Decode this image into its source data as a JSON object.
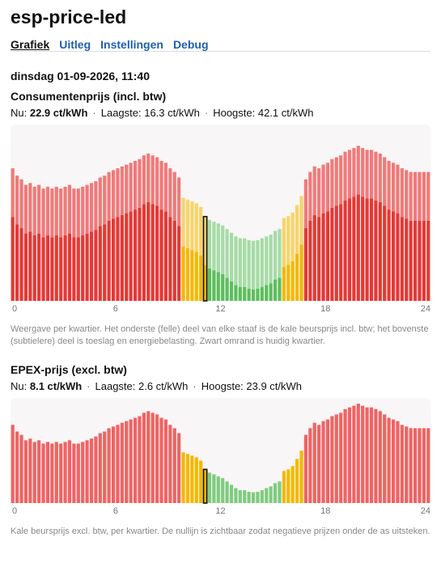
{
  "header": {
    "title": "esp-price-led"
  },
  "nav": [
    "Grafiek",
    "Uitleg",
    "Instellingen",
    "Debug"
  ],
  "date": "dinsdag 01-09-2026, 11:40",
  "separator": "·",
  "sections": [
    {
      "heading": "Consumentenprijs (incl. btw)",
      "stats": {
        "now_label": "Nu:",
        "now": "22.9 ct/kWh",
        "low": "Laagste: 16.3 ct/kWh",
        "high": "Hoogste: 42.1 ct/kWh"
      },
      "note": "Weergave per kwartier. Het onderste (felle) deel van elke staaf is de kale beursprijs incl. btw; het bovenste (subtielere) deel is toeslag en energiebelasting. Zwart omrand is huidig kwartier.",
      "chart_data": {
        "type": "stacked-bar",
        "xlim": [
          0,
          24
        ],
        "xticks": [
          0,
          6,
          12,
          18,
          24
        ],
        "ylim": [
          0,
          47
        ],
        "highlight": 44,
        "levels": [
          {
            "below": 22.5,
            "colors": [
              "#5cbf5c",
              "#a6dca6"
            ]
          },
          {
            "below": 30,
            "colors": [
              "#f5b800",
              "#f8d46a"
            ]
          },
          {
            "colors": [
              "#e53935",
              "#f07a7a"
            ]
          }
        ],
        "series": [
          {
            "values": [
              22.8,
              20.8,
              19.8,
              18.3,
              18.8,
              17.8,
              18.3,
              17.3,
              17.8,
              17.3,
              17.8,
              17.3,
              17.8,
              18.3,
              17.3,
              17.3,
              17.8,
              18.3,
              18.8,
              19.3,
              20.3,
              20.8,
              21.8,
              22.3,
              22.8,
              23.3,
              23.8,
              24.3,
              24.8,
              25.3,
              26.3,
              26.8,
              26.3,
              25.8,
              24.8,
              24.3,
              22.8,
              21.8,
              20.3,
              14.8,
              14.3,
              13.8,
              13.3,
              12.3,
              9.7,
              8.8,
              8.3,
              7.8,
              7.3,
              6.3,
              5.3,
              4.3,
              3.8,
              3.8,
              3.3,
              3.1,
              3.3,
              3.8,
              4.3,
              4.8,
              5.8,
              6.3,
              9.3,
              9.8,
              10.8,
              12.8,
              15.3,
              19.8,
              21.8,
              23.3,
              22.8,
              23.8,
              24.3,
              25.3,
              25.8,
              26.3,
              27.3,
              27.8,
              28.3,
              28.9,
              28.3,
              27.8,
              27.8,
              27.3,
              26.8,
              25.8,
              24.8,
              24.3,
              23.8,
              22.8,
              22.3,
              21.8,
              21.8,
              21.8,
              21.8,
              21.8
            ]
          },
          {
            "values": [
              13.2,
              13.2,
              13.2,
              13.2,
              13.2,
              13.2,
              13.2,
              13.2,
              13.2,
              13.2,
              13.2,
              13.2,
              13.2,
              13.2,
              13.2,
              13.2,
              13.2,
              13.2,
              13.2,
              13.2,
              13.2,
              13.2,
              13.2,
              13.2,
              13.2,
              13.2,
              13.2,
              13.2,
              13.2,
              13.2,
              13.2,
              13.2,
              13.2,
              13.2,
              13.2,
              13.2,
              13.2,
              13.2,
              13.2,
              13.2,
              13.2,
              13.2,
              13.2,
              13.2,
              13.2,
              13.2,
              13.2,
              13.2,
              13.2,
              13.2,
              13.2,
              13.2,
              13.2,
              13.2,
              13.2,
              13.2,
              13.2,
              13.2,
              13.2,
              13.2,
              13.2,
              13.2,
              13.2,
              13.2,
              13.2,
              13.2,
              13.2,
              13.2,
              13.2,
              13.2,
              13.2,
              13.2,
              13.2,
              13.2,
              13.2,
              13.2,
              13.2,
              13.2,
              13.2,
              13.2,
              13.2,
              13.2,
              13.2,
              13.2,
              13.2,
              13.2,
              13.2,
              13.2,
              13.2,
              13.2,
              13.2,
              13.2,
              13.2,
              13.2,
              13.2,
              13.2
            ]
          }
        ]
      }
    },
    {
      "heading": "EPEX-prijs (excl. btw)",
      "stats": {
        "now_label": "Nu:",
        "now": "8.1 ct/kWh",
        "low": "Laagste: 2.6 ct/kWh",
        "high": "Hoogste: 23.9 ct/kWh"
      },
      "note": "Kale beursprijs excl. btw, per kwartier. De nullijn is zichtbaar zodat negatieve prijzen onder de as uitsteken.",
      "chart_data": {
        "type": "stacked-bar",
        "xlim": [
          0,
          24
        ],
        "xticks": [
          0,
          6,
          12,
          18,
          24
        ],
        "ylim": [
          0,
          24.5
        ],
        "highlight": 44,
        "levels": [
          {
            "below": 7.7,
            "colors": [
              "#7fcc7f"
            ]
          },
          {
            "below": 13.9,
            "colors": [
              "#f5b800"
            ]
          },
          {
            "colors": [
              "#ef6464"
            ]
          }
        ],
        "series": [
          {
            "values": [
              18.8,
              17.2,
              16.4,
              15.1,
              15.5,
              14.7,
              15.1,
              14.3,
              14.7,
              14.3,
              14.7,
              14.3,
              14.7,
              15.1,
              14.3,
              14.3,
              14.7,
              15.1,
              15.5,
              16.0,
              16.8,
              17.2,
              18.0,
              18.4,
              18.8,
              19.3,
              19.7,
              20.1,
              20.5,
              20.9,
              21.7,
              22.1,
              21.7,
              21.3,
              20.5,
              20.1,
              18.8,
              18.0,
              16.8,
              12.2,
              11.8,
              11.4,
              11.0,
              10.2,
              8.1,
              7.3,
              6.9,
              6.4,
              6.0,
              5.2,
              4.4,
              3.6,
              3.1,
              3.1,
              2.7,
              2.6,
              2.7,
              3.1,
              3.6,
              4.0,
              4.8,
              5.2,
              7.7,
              8.1,
              8.9,
              10.6,
              12.6,
              16.4,
              18.0,
              19.3,
              18.8,
              19.7,
              20.1,
              20.9,
              21.3,
              21.7,
              22.6,
              23.0,
              23.4,
              23.9,
              23.4,
              23.0,
              23.0,
              22.6,
              22.1,
              21.3,
              20.5,
              20.1,
              19.7,
              18.8,
              18.4,
              18.0,
              18.0,
              18.0,
              18.0,
              18.0
            ]
          }
        ]
      }
    }
  ]
}
